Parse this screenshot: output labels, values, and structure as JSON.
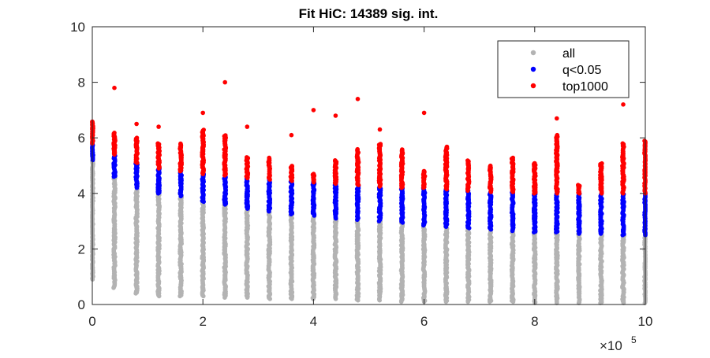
{
  "chart_data": {
    "type": "scatter",
    "title": "Fit HiC: 14389 sig. int.",
    "xlabel": "",
    "ylabel": "",
    "xlim": [
      0,
      10
    ],
    "ylim": [
      0,
      10
    ],
    "x_exponent_label": "×10",
    "x_exponent_power": "5",
    "xticks": [
      0,
      2,
      4,
      6,
      8,
      10
    ],
    "yticks": [
      0,
      2,
      4,
      6,
      8,
      10
    ],
    "grid": false,
    "legend_position": "top-right",
    "x": [
      0,
      0.4,
      0.8,
      1.2,
      1.6,
      2.0,
      2.4,
      2.8,
      3.2,
      3.6,
      4.0,
      4.4,
      4.8,
      5.2,
      5.6,
      6.0,
      6.4,
      6.8,
      7.2,
      7.6,
      8.0,
      8.4,
      8.8,
      9.2,
      9.6,
      10.0
    ],
    "series": [
      {
        "name": "all",
        "color": "#b3b3b3",
        "column_min": [
          0.9,
          0.6,
          0.4,
          0.3,
          0.3,
          0.3,
          0.25,
          0.25,
          0.2,
          0.2,
          0.2,
          0.2,
          0.15,
          0.15,
          0.1,
          0.1,
          0.1,
          0.1,
          0.1,
          0.1,
          0.05,
          0.05,
          0.05,
          0.05,
          0.05,
          0.05
        ],
        "column_max": [
          5.2,
          4.6,
          4.2,
          4.0,
          3.9,
          3.7,
          3.6,
          3.45,
          3.35,
          3.25,
          3.2,
          3.1,
          3.05,
          3.0,
          2.95,
          2.85,
          2.8,
          2.75,
          2.7,
          2.65,
          2.6,
          2.6,
          2.55,
          2.55,
          2.5,
          2.5
        ]
      },
      {
        "name": "q<0.05",
        "color": "#0000ff",
        "column_min": [
          5.2,
          4.6,
          4.2,
          4.0,
          3.9,
          3.7,
          3.6,
          3.45,
          3.35,
          3.25,
          3.2,
          3.1,
          3.05,
          3.0,
          2.95,
          2.85,
          2.8,
          2.75,
          2.7,
          2.65,
          2.6,
          2.6,
          2.55,
          2.55,
          2.5,
          2.5
        ],
        "column_max": [
          5.8,
          5.4,
          5.1,
          4.9,
          4.8,
          4.7,
          4.65,
          4.55,
          4.5,
          4.45,
          4.4,
          4.35,
          4.3,
          4.25,
          4.2,
          4.2,
          4.15,
          4.1,
          4.05,
          4.05,
          4.0,
          4.0,
          4.0,
          4.0,
          4.0,
          4.0
        ]
      },
      {
        "name": "top1000",
        "color": "#ff0000",
        "column_min": [
          5.8,
          5.4,
          5.1,
          4.9,
          4.8,
          4.7,
          4.65,
          4.55,
          4.5,
          4.45,
          4.4,
          4.35,
          4.3,
          4.25,
          4.2,
          4.2,
          4.15,
          4.1,
          4.05,
          4.05,
          4.0,
          4.0,
          4.0,
          4.0,
          4.0,
          4.0
        ],
        "column_max": [
          6.6,
          6.2,
          6.0,
          5.8,
          5.8,
          6.3,
          6.1,
          5.3,
          5.3,
          5.0,
          4.7,
          5.2,
          5.6,
          5.8,
          5.6,
          4.8,
          5.7,
          5.2,
          5.0,
          5.3,
          5.1,
          6.1,
          4.3,
          5.1,
          5.8,
          5.9
        ],
        "outliers": [
          [
            0.4,
            7.8
          ],
          [
            0.8,
            6.5
          ],
          [
            1.2,
            6.4
          ],
          [
            2.0,
            6.9
          ],
          [
            2.4,
            8.0
          ],
          [
            2.8,
            6.4
          ],
          [
            3.6,
            6.1
          ],
          [
            4.0,
            7.0
          ],
          [
            4.4,
            6.8
          ],
          [
            4.8,
            7.4
          ],
          [
            5.2,
            6.3
          ],
          [
            6.0,
            6.9
          ],
          [
            8.4,
            6.7
          ],
          [
            8.4,
            6.0
          ],
          [
            9.6,
            7.2
          ]
        ]
      }
    ]
  }
}
